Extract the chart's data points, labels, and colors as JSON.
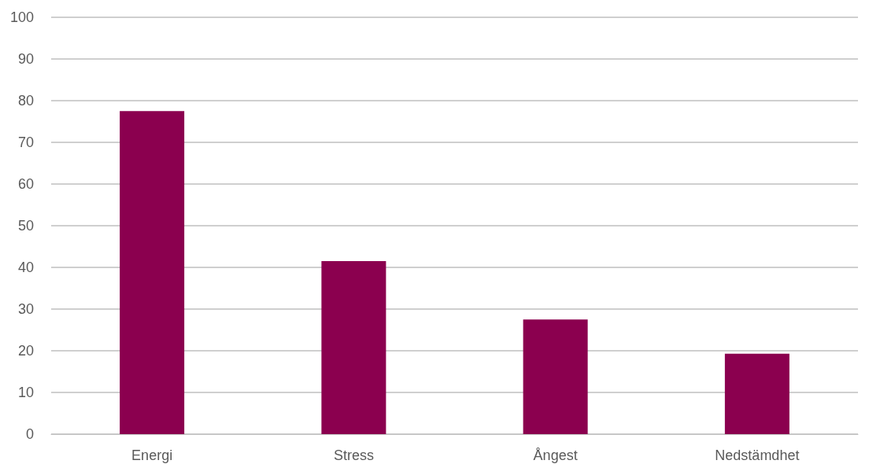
{
  "chart_data": {
    "type": "bar",
    "categories": [
      "Energi",
      "Stress",
      "Ångest",
      "Nedstämdhet"
    ],
    "values": [
      77.5,
      41.5,
      27.5,
      19.3
    ],
    "color": "#8b004f",
    "ylim": [
      0,
      100
    ],
    "yticks": [
      0,
      10,
      20,
      30,
      40,
      50,
      60,
      70,
      80,
      90,
      100
    ],
    "grid": "y"
  }
}
